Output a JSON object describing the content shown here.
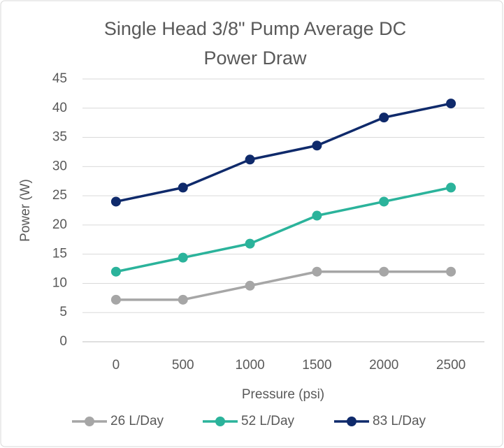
{
  "chart_data": {
    "type": "line",
    "title": [
      "Single Head 3/8\" Pump Average DC",
      "Power Draw"
    ],
    "x_label": "Pressure (psi)",
    "y_label": "Power (W)",
    "categories": [
      "0",
      "500",
      "1000",
      "1500",
      "2000",
      "2500"
    ],
    "series": [
      {
        "name": "26 L/Day",
        "color": "#a6a6a6",
        "values": [
          7.2,
          7.2,
          9.6,
          12,
          12,
          12
        ]
      },
      {
        "name": "52 L/Day",
        "color": "#2bb39b",
        "values": [
          12,
          14.4,
          16.8,
          21.6,
          24,
          26.4
        ]
      },
      {
        "name": "83 L/Day",
        "color": "#0f2a6b",
        "values": [
          24,
          26.4,
          31.2,
          33.6,
          38.4,
          40.8
        ]
      }
    ],
    "ylim": [
      0,
      45
    ],
    "yticks": [
      0,
      5,
      10,
      15,
      20,
      25,
      30,
      35,
      40,
      45
    ],
    "grid": true,
    "legend": "bottom"
  }
}
